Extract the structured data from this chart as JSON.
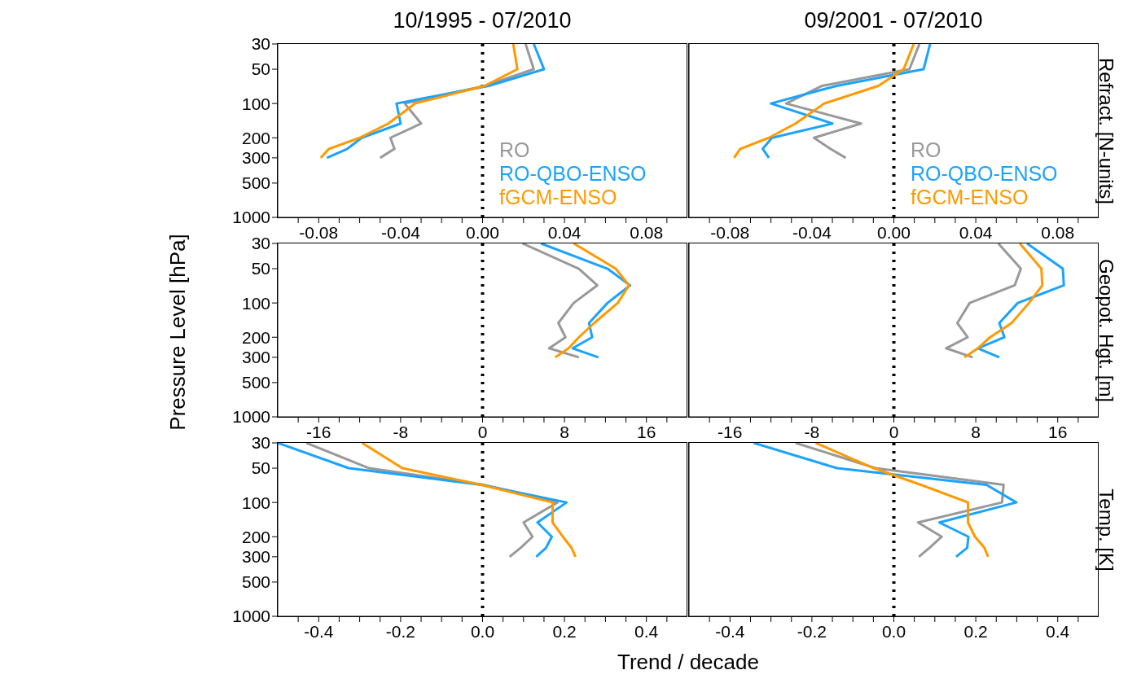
{
  "chart_data": [
    {
      "type": "line",
      "title": "10/1995 - 07/2010",
      "legend": "bottom right",
      "log": "y",
      "ylim": [
        1000,
        30
      ],
      "yticks": [
        30,
        50,
        100,
        200,
        300,
        500,
        1000
      ],
      "xlim": [
        -0.1,
        0.1
      ],
      "xticks": [
        {
          "value": -0.09,
          "label": null
        },
        {
          "value": -0.08,
          "label": "-0.08"
        },
        {
          "value": -0.07,
          "label": null
        },
        {
          "value": -0.06,
          "label": null
        },
        {
          "value": -0.05,
          "label": null
        },
        {
          "value": -0.04,
          "label": "-0.04"
        },
        {
          "value": -0.03,
          "label": null
        },
        {
          "value": -0.02,
          "label": null
        },
        {
          "value": -0.01,
          "label": null
        },
        {
          "value": 0,
          "label": "0.00"
        },
        {
          "value": 0.01,
          "label": null
        },
        {
          "value": 0.02,
          "label": null
        },
        {
          "value": 0.03,
          "label": null
        },
        {
          "value": 0.04,
          "label": "0.04"
        },
        {
          "value": 0.05,
          "label": null
        },
        {
          "value": 0.06,
          "label": null
        },
        {
          "value": 0.07,
          "label": null
        },
        {
          "value": 0.08,
          "label": "0.08"
        },
        {
          "value": 0.09,
          "label": null
        }
      ],
      "ref_lines": [
        {
          "axis": "x",
          "value": 0,
          "line_style": "dotted",
          "color": "#000000"
        }
      ],
      "series": [
        {
          "name": "RO",
          "color": "#999999",
          "x": [
            0.021,
            0.025,
            0.001,
            -0.038,
            -0.03,
            -0.045,
            -0.043,
            -0.05
          ],
          "values": [
            30,
            50,
            70,
            100,
            150,
            200,
            250,
            300
          ]
        },
        {
          "name": "RO-QBO-ENSO",
          "color": "#1aa3ff",
          "x": [
            0.025,
            0.03,
            0.003,
            -0.042,
            -0.04,
            -0.059,
            -0.066,
            -0.076
          ],
          "values": [
            30,
            50,
            70,
            100,
            150,
            200,
            250,
            300
          ]
        },
        {
          "name": "fGCM-ENSO",
          "color": "#ff9900",
          "x": [
            0.015,
            0.017,
            0.001,
            -0.033,
            -0.046,
            -0.06,
            -0.075,
            -0.079
          ],
          "values": [
            30,
            50,
            70,
            100,
            150,
            200,
            250,
            300
          ]
        }
      ]
    },
    {
      "type": "line",
      "title": "09/2001 - 07/2010",
      "y2label": "Refract. [N-units]",
      "legend": "bottom right",
      "log": "y",
      "tick_labels": "x",
      "ylim": [
        1000,
        30
      ],
      "yticks": [
        30,
        50,
        100,
        200,
        300,
        500,
        1000
      ],
      "xlim": [
        -0.1,
        0.1
      ],
      "xticks": [
        {
          "value": -0.09,
          "label": null
        },
        {
          "value": -0.08,
          "label": "-0.08"
        },
        {
          "value": -0.07,
          "label": null
        },
        {
          "value": -0.06,
          "label": null
        },
        {
          "value": -0.05,
          "label": null
        },
        {
          "value": -0.04,
          "label": "-0.04"
        },
        {
          "value": -0.03,
          "label": null
        },
        {
          "value": -0.02,
          "label": null
        },
        {
          "value": -0.01,
          "label": null
        },
        {
          "value": 0,
          "label": "0.00"
        },
        {
          "value": 0.01,
          "label": null
        },
        {
          "value": 0.02,
          "label": null
        },
        {
          "value": 0.03,
          "label": null
        },
        {
          "value": 0.04,
          "label": "0.04"
        },
        {
          "value": 0.05,
          "label": null
        },
        {
          "value": 0.06,
          "label": null
        },
        {
          "value": 0.07,
          "label": null
        },
        {
          "value": 0.08,
          "label": "0.08"
        },
        {
          "value": 0.09,
          "label": null
        }
      ],
      "ref_lines": [
        {
          "axis": "x",
          "value": 0,
          "line_style": "dotted",
          "color": "#000000"
        }
      ],
      "series": [
        {
          "name": "RO",
          "color": "#999999",
          "x": [
            0.0125,
            0.0076,
            -0.035,
            -0.0526,
            -0.016,
            -0.039,
            -0.031,
            -0.0235
          ],
          "values": [
            30,
            50,
            70,
            100,
            150,
            200,
            250,
            300
          ]
        },
        {
          "name": "RO-QBO-ENSO",
          "color": "#1aa3ff",
          "x": [
            0.0177,
            0.0145,
            -0.028,
            -0.06,
            -0.03,
            -0.0595,
            -0.064,
            -0.061
          ],
          "values": [
            30,
            50,
            70,
            100,
            150,
            200,
            250,
            300
          ]
        },
        {
          "name": "fGCM-ENSO",
          "color": "#ff9900",
          "x": [
            0.0097,
            0.0048,
            -0.0076,
            -0.034,
            -0.048,
            -0.061,
            -0.075,
            -0.078
          ],
          "values": [
            30,
            50,
            70,
            100,
            150,
            200,
            250,
            300
          ]
        }
      ]
    },
    {
      "type": "line",
      "ylabel": "Pressure Level [hPa]",
      "log": "y",
      "ylim": [
        1000,
        30
      ],
      "yticks": [
        30,
        50,
        100,
        200,
        300,
        500,
        1000
      ],
      "xlim": [
        -20,
        20
      ],
      "xticks": [
        {
          "value": -18,
          "label": null
        },
        -16,
        {
          "value": -14,
          "label": null
        },
        {
          "value": -12,
          "label": null
        },
        {
          "value": -10,
          "label": null
        },
        -8,
        {
          "value": -6,
          "label": null
        },
        {
          "value": -4,
          "label": null
        },
        {
          "value": -2,
          "label": null
        },
        0,
        {
          "value": 2,
          "label": null
        },
        {
          "value": 4,
          "label": null
        },
        {
          "value": 6,
          "label": null
        },
        8,
        {
          "value": 10,
          "label": null
        },
        {
          "value": 12,
          "label": null
        },
        {
          "value": 14,
          "label": null
        },
        16,
        {
          "value": 18,
          "label": null
        }
      ],
      "ref_lines": [
        {
          "axis": "x",
          "value": 0,
          "line_style": "dotted",
          "color": "#000000"
        }
      ],
      "series": [
        {
          "color": "#999999",
          "x": [
            3.9,
            9.4,
            11.2,
            8.9,
            7.4,
            8.1,
            6.5,
            9.4
          ],
          "values": [
            30,
            50,
            70,
            100,
            150,
            200,
            250,
            300
          ]
        },
        {
          "color": "#1aa3ff",
          "x": [
            5.7,
            12.2,
            14.4,
            12.2,
            10.4,
            10.7,
            8.8,
            11.3
          ],
          "values": [
            30,
            50,
            70,
            100,
            150,
            200,
            250,
            300
          ]
        },
        {
          "color": "#ff9900",
          "x": [
            8.9,
            13.0,
            14.3,
            13.2,
            10.9,
            9.4,
            8.4,
            7.1
          ],
          "values": [
            30,
            50,
            70,
            100,
            150,
            200,
            250,
            300
          ]
        }
      ]
    },
    {
      "type": "line",
      "y2label": "Geopot. Hgt. [m]",
      "log": "y",
      "tick_labels": "x",
      "ylim": [
        1000,
        30
      ],
      "yticks": [
        30,
        50,
        100,
        200,
        300,
        500,
        1000
      ],
      "xlim": [
        -20,
        20
      ],
      "xticks": [
        {
          "value": -18,
          "label": null
        },
        -16,
        {
          "value": -14,
          "label": null
        },
        {
          "value": -12,
          "label": null
        },
        {
          "value": -10,
          "label": null
        },
        -8,
        {
          "value": -6,
          "label": null
        },
        {
          "value": -4,
          "label": null
        },
        {
          "value": -2,
          "label": null
        },
        0,
        {
          "value": 2,
          "label": null
        },
        {
          "value": 4,
          "label": null
        },
        {
          "value": 6,
          "label": null
        },
        8,
        {
          "value": 10,
          "label": null
        },
        {
          "value": 12,
          "label": null
        },
        {
          "value": 14,
          "label": null
        },
        16,
        {
          "value": 18,
          "label": null
        }
      ],
      "ref_lines": [
        {
          "axis": "x",
          "value": 0,
          "line_style": "dotted",
          "color": "#000000"
        }
      ],
      "series": [
        {
          "color": "#999999",
          "x": [
            10.2,
            12.4,
            11.8,
            7.4,
            6.2,
            7.2,
            5.1,
            7.7
          ],
          "values": [
            30,
            50,
            70,
            100,
            150,
            200,
            250,
            300
          ]
        },
        {
          "color": "#1aa3ff",
          "x": [
            13.0,
            16.5,
            16.6,
            12.1,
            10.3,
            10.8,
            8.2,
            10.3
          ],
          "values": [
            30,
            50,
            70,
            100,
            150,
            200,
            250,
            300
          ]
        },
        {
          "color": "#ff9900",
          "x": [
            12.3,
            14.4,
            14.5,
            13.2,
            11.5,
            9.4,
            8.2,
            6.9
          ],
          "values": [
            30,
            50,
            70,
            100,
            150,
            200,
            250,
            300
          ]
        }
      ]
    },
    {
      "type": "line",
      "xlabel": "Trend / decade",
      "log": "y",
      "ylim": [
        1000,
        30
      ],
      "yticks": [
        30,
        50,
        100,
        200,
        300,
        500,
        1000
      ],
      "xlim": [
        -0.5,
        0.5
      ],
      "xticks": [
        {
          "value": -0.45,
          "label": null
        },
        {
          "value": -0.4,
          "label": "-0.4"
        },
        {
          "value": -0.35,
          "label": null
        },
        {
          "value": -0.3,
          "label": null
        },
        {
          "value": -0.25,
          "label": null
        },
        {
          "value": -0.2,
          "label": "-0.2"
        },
        {
          "value": -0.15,
          "label": null
        },
        {
          "value": -0.1,
          "label": null
        },
        {
          "value": -0.05,
          "label": null
        },
        {
          "value": 0,
          "label": "0.0"
        },
        {
          "value": 0.05,
          "label": null
        },
        {
          "value": 0.1,
          "label": null
        },
        {
          "value": 0.15,
          "label": null
        },
        {
          "value": 0.2,
          "label": "0.2"
        },
        {
          "value": 0.25,
          "label": null
        },
        {
          "value": 0.3,
          "label": null
        },
        {
          "value": 0.35,
          "label": null
        },
        {
          "value": 0.4,
          "label": "0.4"
        },
        {
          "value": 0.45,
          "label": null
        }
      ],
      "ref_lines": [
        {
          "axis": "x",
          "value": 0,
          "line_style": "dotted",
          "color": "#000000"
        }
      ],
      "series": [
        {
          "color": "#999999",
          "x": [
            -0.43,
            -0.277,
            0.003,
            0.183,
            0.1,
            0.122,
            0.093,
            0.066
          ],
          "values": [
            30,
            50,
            70,
            100,
            150,
            200,
            250,
            300
          ]
        },
        {
          "color": "#1aa3ff",
          "x": [
            -0.5,
            -0.327,
            -0.003,
            0.205,
            0.134,
            0.169,
            0.155,
            0.131
          ],
          "values": [
            30,
            50,
            70,
            100,
            150,
            200,
            250,
            300
          ]
        },
        {
          "color": "#ff9900",
          "x": [
            -0.294,
            -0.196,
            -0.003,
            0.171,
            0.171,
            0.196,
            0.217,
            0.227
          ],
          "values": [
            30,
            50,
            70,
            100,
            150,
            200,
            250,
            300
          ]
        }
      ]
    },
    {
      "type": "line",
      "y2label": "Temp. [K]",
      "log": "y",
      "tick_labels": "x",
      "ylim": [
        1000,
        30
      ],
      "yticks": [
        30,
        50,
        100,
        200,
        300,
        500,
        1000
      ],
      "xlim": [
        -0.5,
        0.5
      ],
      "xticks": [
        {
          "value": -0.45,
          "label": null
        },
        {
          "value": -0.4,
          "label": "-0.4"
        },
        {
          "value": -0.35,
          "label": null
        },
        {
          "value": -0.3,
          "label": null
        },
        {
          "value": -0.25,
          "label": null
        },
        {
          "value": -0.2,
          "label": "-0.2"
        },
        {
          "value": -0.15,
          "label": null
        },
        {
          "value": -0.1,
          "label": null
        },
        {
          "value": -0.05,
          "label": null
        },
        {
          "value": 0,
          "label": "0.0"
        },
        {
          "value": 0.05,
          "label": null
        },
        {
          "value": 0.1,
          "label": null
        },
        {
          "value": 0.15,
          "label": null
        },
        {
          "value": 0.2,
          "label": "0.2"
        },
        {
          "value": 0.25,
          "label": null
        },
        {
          "value": 0.3,
          "label": null
        },
        {
          "value": 0.35,
          "label": null
        },
        {
          "value": 0.4,
          "label": "0.4"
        },
        {
          "value": 0.45,
          "label": null
        }
      ],
      "ref_lines": [
        {
          "axis": "x",
          "value": 0,
          "line_style": "dotted",
          "color": "#000000"
        }
      ],
      "series": [
        {
          "color": "#999999",
          "x": [
            -0.24,
            -0.045,
            0.268,
            0.264,
            0.059,
            0.117,
            0.087,
            0.061
          ],
          "values": [
            30,
            50,
            70,
            100,
            150,
            200,
            250,
            300
          ]
        },
        {
          "color": "#1aa3ff",
          "x": [
            -0.342,
            -0.139,
            0.226,
            0.299,
            0.111,
            0.182,
            0.179,
            0.152
          ],
          "values": [
            30,
            50,
            70,
            100,
            150,
            200,
            250,
            300
          ]
        },
        {
          "color": "#ff9900",
          "x": [
            -0.191,
            -0.049,
            0.066,
            0.181,
            0.181,
            0.198,
            0.221,
            0.23
          ],
          "values": [
            30,
            50,
            70,
            100,
            150,
            200,
            250,
            300
          ]
        }
      ]
    }
  ]
}
